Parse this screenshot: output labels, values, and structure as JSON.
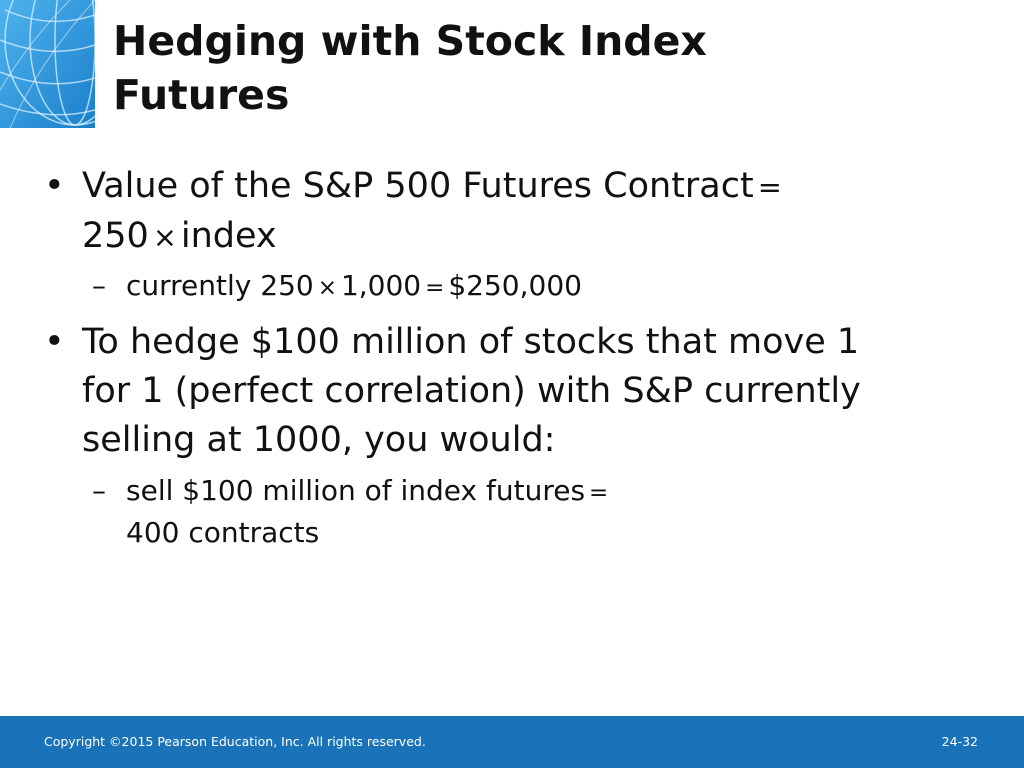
{
  "title": {
    "line1": "Hedging with Stock Index",
    "line2": "Futures"
  },
  "bullets": [
    {
      "bullet_glyph": "•",
      "lines": [
        "Value of the S&P 500 Futures Contract",
        "250",
        "index"
      ],
      "operators": [
        "=",
        "×"
      ],
      "sub": {
        "dash_glyph": "–",
        "lines": [
          "currently 250",
          "1,000",
          "$250,000"
        ],
        "operators": [
          "×",
          "="
        ]
      }
    },
    {
      "bullet_glyph": "•",
      "lines": [
        "To hedge $100 million of stocks that move 1",
        "for 1 (perfect correlation) with S&P currently",
        "selling at 1000, you would:"
      ],
      "sub": {
        "dash_glyph": "–",
        "lines": [
          "sell $100 million of index futures",
          "400 contracts"
        ],
        "operators": [
          "="
        ]
      }
    }
  ],
  "footer": {
    "copyright": "Copyright ©2015 Pearson Education, Inc. All rights reserved.",
    "page_number": "24-32"
  },
  "colors": {
    "footer_bar": "#1a73b8",
    "logo_tile": "#2a8fd6",
    "title_text": "#111111"
  },
  "icons": {
    "logo": "globe-grid-icon"
  }
}
